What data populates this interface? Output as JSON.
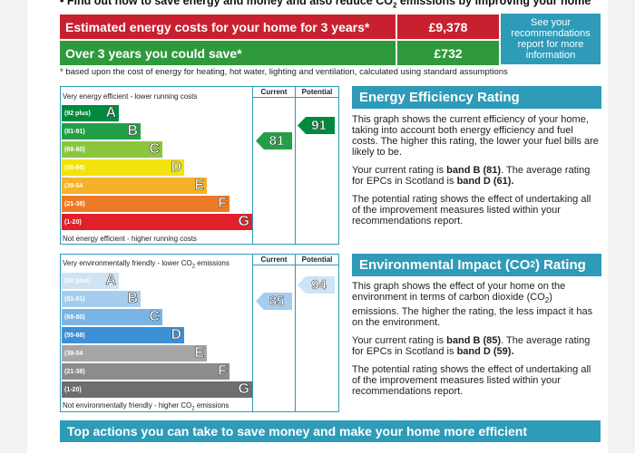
{
  "header": {
    "title_prefix": "Find out how to save energy and money and also reduce CO",
    "title_sub": "2",
    "title_suffix": " emissions by improving your home"
  },
  "costs": {
    "estimated_label": "Estimated energy costs for your home for 3 years*",
    "estimated_value": "£9,378",
    "save_label": "Over 3 years you could save*",
    "save_value": "£732",
    "see_box": "See your recommendations report for more information",
    "footnote": "* based upon the cost of energy for heating, hot water, lighting and ventilation, calculated using standard assumptions"
  },
  "energy_chart": {
    "top_caption": "Very energy efficient - lower running costs",
    "bottom_caption": "Not energy efficient - higher running costs",
    "current_header": "Current",
    "potential_header": "Potential",
    "current_value": "81",
    "potential_value": "91",
    "bands": [
      {
        "range": "(92 plus)",
        "letter": "A",
        "color": "#008a3e"
      },
      {
        "range": "(81-91)",
        "letter": "B",
        "color": "#23a047"
      },
      {
        "range": "(69-80)",
        "letter": "C",
        "color": "#8cc63f"
      },
      {
        "range": "(55-68)",
        "letter": "D",
        "color": "#f2e30c"
      },
      {
        "range": "(39-54",
        "letter": "E",
        "color": "#f6b128"
      },
      {
        "range": "(21-38)",
        "letter": "F",
        "color": "#ed7a24"
      },
      {
        "range": "(1-20)",
        "letter": "G",
        "color": "#e3202a"
      }
    ]
  },
  "env_chart": {
    "top_caption_prefix": "Very environmentally friendly - lower CO",
    "top_caption_suffix": " emissions",
    "bottom_caption_prefix": "Not environmentally friendly - higher CO",
    "bottom_caption_suffix": " emissions",
    "sub2": "2",
    "current_header": "Current",
    "potential_header": "Potential",
    "current_value": "85",
    "potential_value": "94",
    "bands": [
      {
        "range": "(92 plus)",
        "letter": "A",
        "color": "#cfe3f5"
      },
      {
        "range": "(81-91)",
        "letter": "B",
        "color": "#a6cdee"
      },
      {
        "range": "(69-80)",
        "letter": "C",
        "color": "#7ab3e6"
      },
      {
        "range": "(55-68)",
        "letter": "D",
        "color": "#3d8fd6"
      },
      {
        "range": "(39-54",
        "letter": "E",
        "color": "#a6a6a6"
      },
      {
        "range": "(21-38)",
        "letter": "F",
        "color": "#8c8c8c"
      },
      {
        "range": "(1-20)",
        "letter": "G",
        "color": "#6e6e6e"
      }
    ]
  },
  "energy_panel": {
    "title": "Energy Efficiency Rating",
    "p1": "This graph shows the current efficiency of your home, taking into account both energy efficiency and fuel costs. The higher this rating, the lower your fuel bills are likely to be.",
    "p2_a": "Your current rating is ",
    "p2_b": "band B (81)",
    "p2_c": ". The average rating for EPCs in Scotland is ",
    "p2_d": "band D (61).",
    "p3": "The potential rating shows the effect of undertaking all of the improvement measures listed within your recommendations report."
  },
  "env_panel": {
    "title_prefix": "Environmental Impact (CO",
    "title_sub": "2",
    "title_suffix": ") Rating",
    "p1_a": "This graph shows the effect of your home on the environment in terms of carbon dioxide (CO",
    "p1_sub": "2",
    "p1_b": ") emissions. The higher the rating, the less impact it has on the environment.",
    "p2_a": "Your current rating is ",
    "p2_b": "band B (85)",
    "p2_c": ". The average rating for EPCs in Scotland is ",
    "p2_d": "band D (59).",
    "p3": "The potential rating shows the effect of undertaking all of the improvement measures listed within your recommendations report."
  },
  "bottom": {
    "title": "Top actions you can take to save money and make your home more efficient"
  }
}
